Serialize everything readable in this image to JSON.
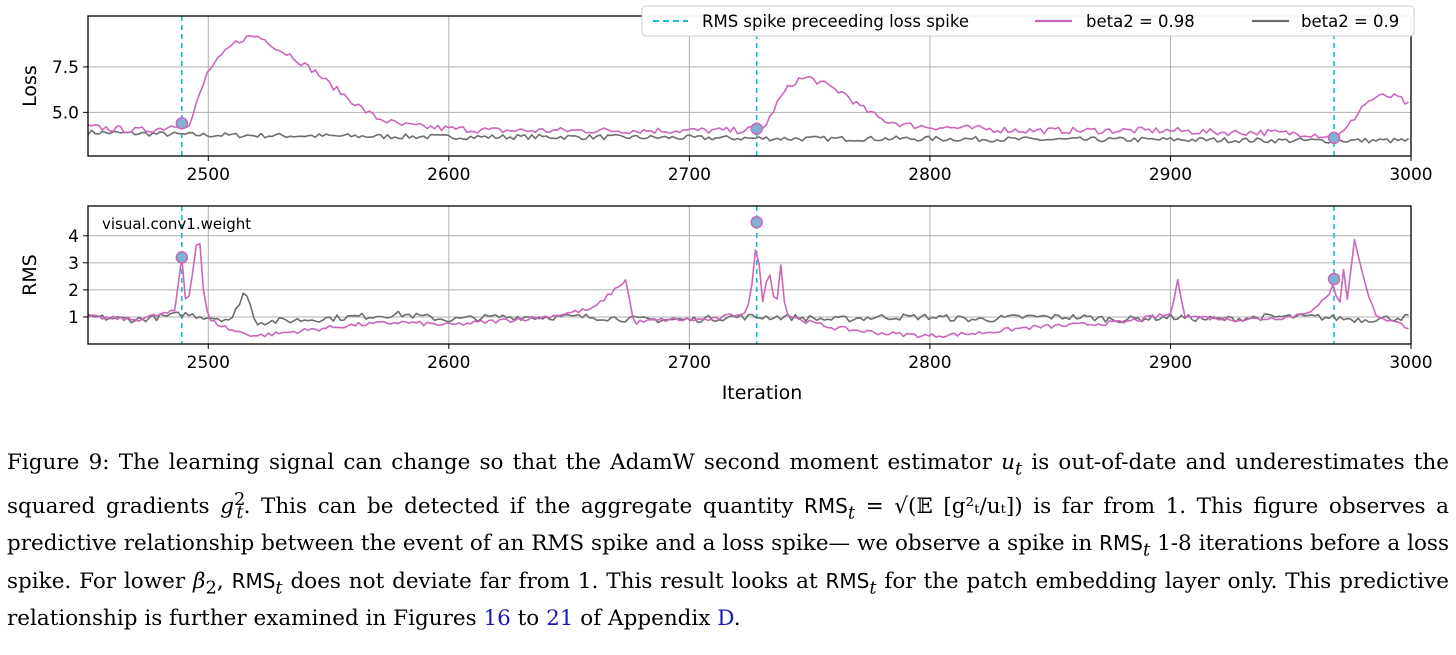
{
  "chart_data": [
    {
      "type": "line",
      "ylabel": "Loss",
      "xlabel": "",
      "xlim": [
        2450,
        3000
      ],
      "ylim": [
        2.6,
        10.3
      ],
      "xticks": [
        "2500",
        "2600",
        "2700",
        "2800",
        "2900",
        "3000"
      ],
      "yticks": [
        "5.0",
        "7.5"
      ],
      "grid": true,
      "legend_position": "top-right",
      "legend": {
        "rms_spike": "RMS spike preceeding loss spike",
        "beta098": "beta2 = 0.98",
        "beta09": "beta2 = 0.9"
      },
      "spike_iterations": [
        2489,
        2728,
        2968
      ],
      "spike_markers": [
        [
          2489,
          4.4
        ],
        [
          2728,
          4.1
        ],
        [
          2968,
          3.6
        ]
      ],
      "series": [
        {
          "name": "beta2 = 0.98",
          "color": "#cc66bb",
          "x": [
            2450,
            2460,
            2470,
            2480,
            2489,
            2492,
            2496,
            2500,
            2505,
            2510,
            2515,
            2520,
            2525,
            2530,
            2535,
            2540,
            2545,
            2550,
            2555,
            2560,
            2565,
            2570,
            2575,
            2580,
            2590,
            2600,
            2620,
            2640,
            2660,
            2680,
            2700,
            2720,
            2728,
            2732,
            2736,
            2740,
            2745,
            2750,
            2755,
            2760,
            2765,
            2770,
            2775,
            2780,
            2790,
            2800,
            2820,
            2840,
            2860,
            2880,
            2900,
            2920,
            2940,
            2960,
            2968,
            2972,
            2976,
            2980,
            2985,
            2990,
            2995,
            3000
          ],
          "y": [
            4.2,
            4.1,
            4.0,
            4.1,
            4.4,
            4.2,
            5.8,
            7.3,
            8.0,
            8.7,
            9.1,
            9.2,
            8.9,
            8.4,
            8.1,
            7.6,
            7.2,
            6.6,
            6.1,
            5.6,
            5.1,
            4.7,
            4.5,
            4.3,
            4.2,
            4.1,
            4.0,
            4.0,
            4.0,
            4.0,
            4.0,
            4.0,
            4.1,
            4.3,
            5.4,
            6.2,
            6.8,
            6.9,
            6.6,
            6.3,
            6.0,
            5.4,
            5.0,
            4.6,
            4.3,
            4.2,
            4.1,
            4.0,
            4.0,
            4.0,
            4.0,
            3.9,
            3.9,
            3.8,
            3.6,
            3.9,
            4.6,
            5.4,
            5.8,
            5.9,
            5.8,
            5.3
          ]
        },
        {
          "name": "beta2 = 0.9",
          "color": "#6e6e6e",
          "x": [
            2450,
            2500,
            2550,
            2600,
            2650,
            2700,
            2750,
            2800,
            2850,
            2900,
            2950,
            3000
          ],
          "y": [
            3.9,
            3.75,
            3.7,
            3.65,
            3.65,
            3.6,
            3.55,
            3.55,
            3.5,
            3.5,
            3.45,
            3.45
          ]
        }
      ]
    },
    {
      "type": "line",
      "ylabel": "RMS",
      "xlabel": "Iteration",
      "xlim": [
        2450,
        3000
      ],
      "ylim": [
        0,
        5.1
      ],
      "xticks": [
        "2500",
        "2600",
        "2700",
        "2800",
        "2900",
        "3000"
      ],
      "yticks": [
        "1",
        "2",
        "3",
        "4"
      ],
      "grid": true,
      "annotation": "visual.conv1.weight",
      "spike_iterations": [
        2489,
        2728,
        2968
      ],
      "spike_markers": [
        [
          2489,
          3.2
        ],
        [
          2728,
          4.5
        ],
        [
          2968,
          2.4
        ]
      ],
      "series": [
        {
          "name": "beta2 = 0.98",
          "color": "#cc66bb",
          "x": [
            2450,
            2470,
            2486,
            2489,
            2491,
            2494,
            2496,
            2498,
            2500,
            2510,
            2520,
            2540,
            2560,
            2580,
            2600,
            2640,
            2660,
            2674,
            2676,
            2678,
            2690,
            2710,
            2724,
            2727,
            2728,
            2730,
            2733,
            2736,
            2738,
            2740,
            2750,
            2760,
            2780,
            2800,
            2820,
            2840,
            2860,
            2880,
            2900,
            2903,
            2906,
            2910,
            2930,
            2950,
            2960,
            2966,
            2968,
            2970,
            2972,
            2974,
            2976,
            2980,
            2985,
            2990,
            3000
          ],
          "y": [
            1.0,
            0.9,
            1.2,
            3.2,
            1.2,
            3.0,
            4.3,
            2.0,
            0.9,
            0.5,
            0.3,
            0.5,
            0.7,
            0.8,
            0.7,
            1.0,
            1.3,
            2.4,
            1.0,
            0.8,
            0.9,
            0.9,
            1.2,
            2.6,
            4.5,
            1.3,
            2.9,
            1.2,
            3.0,
            1.1,
            0.8,
            0.6,
            0.4,
            0.3,
            0.4,
            0.6,
            0.7,
            0.8,
            1.1,
            2.3,
            1.1,
            1.0,
            0.9,
            1.0,
            1.3,
            1.8,
            2.4,
            1.2,
            2.8,
            1.3,
            4.1,
            2.5,
            1.1,
            0.9,
            0.6
          ]
        },
        {
          "name": "beta2 = 0.9",
          "color": "#6e6e6e",
          "x": [
            2450,
            2470,
            2490,
            2510,
            2515,
            2520,
            2540,
            2560,
            2580,
            2600,
            2620,
            2640,
            2660,
            2680,
            2700,
            2720,
            2740,
            2760,
            2780,
            2800,
            2820,
            2840,
            2860,
            2880,
            2900,
            2920,
            2940,
            2960,
            2980,
            3000
          ],
          "y": [
            1.0,
            0.9,
            1.1,
            0.9,
            2.0,
            0.8,
            0.9,
            1.0,
            1.1,
            0.9,
            1.0,
            1.0,
            1.0,
            0.9,
            0.9,
            1.0,
            1.0,
            0.9,
            1.0,
            1.0,
            0.9,
            1.0,
            1.0,
            0.9,
            1.0,
            0.9,
            1.0,
            1.0,
            0.9,
            1.0
          ]
        }
      ]
    }
  ],
  "caption": {
    "label": "Figure 9:",
    "line1": "The learning signal can change so that the AdamW second moment estimator",
    "u_t": "u",
    "u_sub": "t",
    "line1b": "is out-of-date and",
    "line2a": "underestimates the squared gradients",
    "g": "g",
    "g_sup": "2",
    "g_sub": "t",
    "line2b": ". This can be detected if the aggregate quantity",
    "rms": "RMS",
    "rms_sub": "t",
    "eq": "= √(𝔼 [g²ₜ/uₜ])",
    "line2c": "is far",
    "line3": "from 1. This figure observes a predictive relationship between the event of an RMS spike and a loss spike— we observe",
    "line4a": "a spike in",
    "line4b": "1-8 iterations before a loss spike. For lower",
    "beta": "β",
    "beta_sub": "2",
    "line4c": ",",
    "line4d": "does not deviate far from 1. This result looks",
    "line5a": "at",
    "line5b": "for the patch embedding layer only. This predictive relationship is further examined in Figures",
    "ref1": "16",
    "to": "to",
    "ref2": "21",
    "of": "of",
    "line6a": "Appendix",
    "ref3": "D",
    "line6b": "."
  }
}
